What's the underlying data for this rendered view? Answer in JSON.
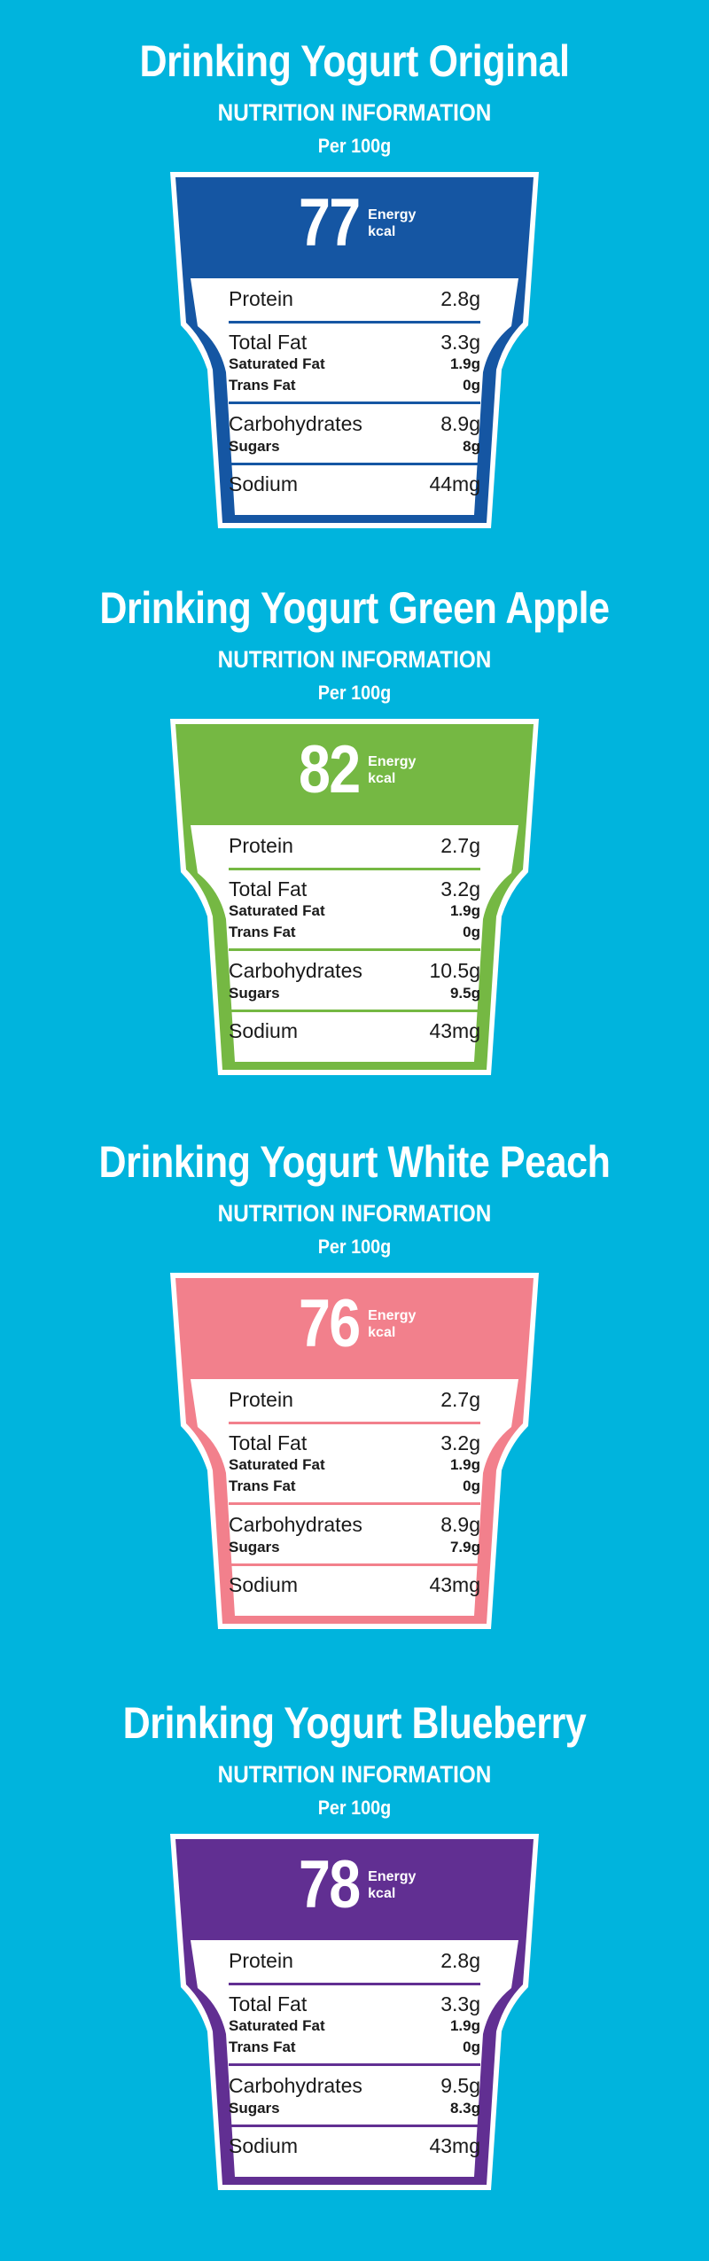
{
  "colors": {
    "background": "#00b4dd",
    "original": "#1556a3",
    "green_apple": "#75b843",
    "white_peach": "#f2808c",
    "blueberry": "#612f92"
  },
  "common": {
    "subtitle": "NUTRITION INFORMATION",
    "per": "Per 100g",
    "energy_label_1": "Energy",
    "energy_label_2": "kcal",
    "labels": {
      "protein": "Protein",
      "total_fat": "Total Fat",
      "saturated_fat": "Saturated Fat",
      "trans_fat": "Trans Fat",
      "carbohydrates": "Carbohydrates",
      "sugars": "Sugars",
      "sodium": "Sodium"
    }
  },
  "products": [
    {
      "title": "Drinking Yogurt Original",
      "color": "#1556a3",
      "energy": "77",
      "protein": "2.8g",
      "total_fat": "3.3g",
      "saturated_fat": "1.9g",
      "trans_fat": "0g",
      "carbohydrates": "8.9g",
      "sugars": "8g",
      "sodium": "44mg"
    },
    {
      "title": "Drinking Yogurt Green Apple",
      "color": "#75b843",
      "energy": "82",
      "protein": "2.7g",
      "total_fat": "3.2g",
      "saturated_fat": "1.9g",
      "trans_fat": "0g",
      "carbohydrates": "10.5g",
      "sugars": "9.5g",
      "sodium": "43mg"
    },
    {
      "title": "Drinking Yogurt White Peach",
      "color": "#f2808c",
      "energy": "76",
      "protein": "2.7g",
      "total_fat": "3.2g",
      "saturated_fat": "1.9g",
      "trans_fat": "0g",
      "carbohydrates": "8.9g",
      "sugars": "7.9g",
      "sodium": "43mg"
    },
    {
      "title": "Drinking Yogurt Blueberry",
      "color": "#612f92",
      "energy": "78",
      "protein": "2.8g",
      "total_fat": "3.3g",
      "saturated_fat": "1.9g",
      "trans_fat": "0g",
      "carbohydrates": "9.5g",
      "sugars": "8.3g",
      "sodium": "43mg"
    }
  ]
}
